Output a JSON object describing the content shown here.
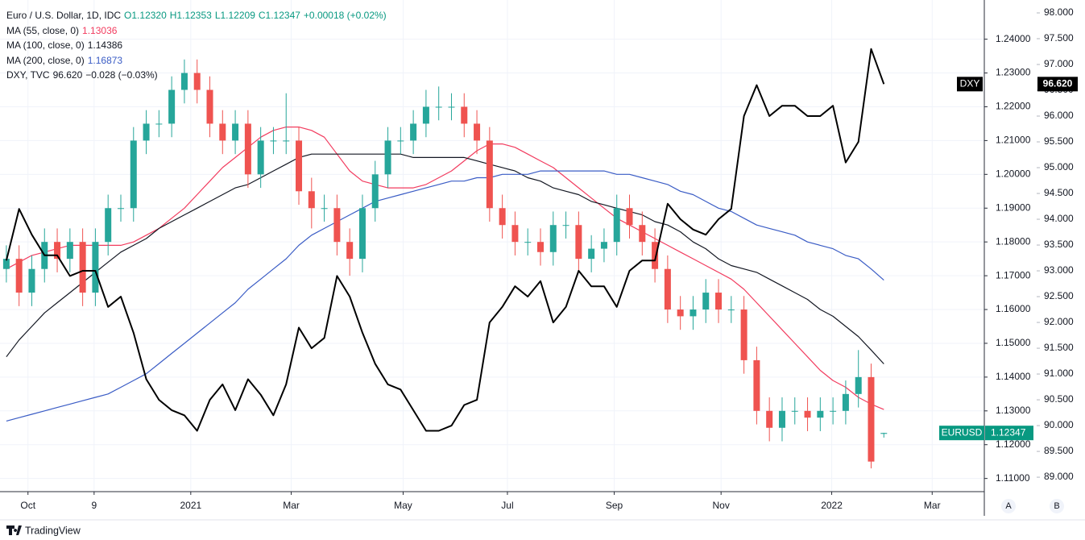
{
  "chart_data": {
    "type": "candlestick",
    "legend": {
      "title": "Euro / U.S. Dollar, 1D, IDC",
      "ohlc": [
        "O1.12320",
        "H1.12353",
        "L1.12209",
        "C1.12347",
        "+0.00018 (+0.02%)"
      ],
      "ohlc_color": "#089981"
    },
    "candles": {
      "name": "EURUSD",
      "last_label": "1.12347",
      "badge_color": "#089981",
      "up_color": "#26a69a",
      "down_color": "#ef5350",
      "open": [
        1.172,
        1.175,
        1.165,
        1.172,
        1.18,
        1.175,
        1.18,
        1.165,
        1.18,
        1.19,
        1.19,
        1.21,
        1.215,
        1.215,
        1.225,
        1.23,
        1.225,
        1.215,
        1.21,
        1.215,
        1.2,
        1.21,
        1.21,
        1.21,
        1.195,
        1.19,
        1.19,
        1.18,
        1.175,
        1.19,
        1.2,
        1.21,
        1.21,
        1.215,
        1.22,
        1.22,
        1.22,
        1.215,
        1.21,
        1.19,
        1.185,
        1.18,
        1.18,
        1.177,
        1.185,
        1.185,
        1.175,
        1.178,
        1.18,
        1.19,
        1.185,
        1.18,
        1.172,
        1.16,
        1.158,
        1.16,
        1.165,
        1.16,
        1.16,
        1.145,
        1.13,
        1.125,
        1.13,
        1.13,
        1.128,
        1.13,
        1.13,
        1.135,
        1.14,
        1.1232
      ],
      "high": [
        1.179,
        1.179,
        1.176,
        1.184,
        1.184,
        1.184,
        1.184,
        1.184,
        1.194,
        1.194,
        1.214,
        1.219,
        1.219,
        1.229,
        1.234,
        1.234,
        1.229,
        1.219,
        1.219,
        1.219,
        1.214,
        1.214,
        1.224,
        1.214,
        1.199,
        1.194,
        1.194,
        1.184,
        1.194,
        1.204,
        1.214,
        1.214,
        1.219,
        1.225,
        1.226,
        1.224,
        1.224,
        1.219,
        1.214,
        1.194,
        1.189,
        1.184,
        1.184,
        1.189,
        1.189,
        1.189,
        1.182,
        1.184,
        1.194,
        1.194,
        1.189,
        1.184,
        1.176,
        1.164,
        1.164,
        1.169,
        1.169,
        1.164,
        1.164,
        1.149,
        1.134,
        1.134,
        1.134,
        1.134,
        1.134,
        1.134,
        1.139,
        1.148,
        1.144,
        1.12353
      ],
      "low": [
        1.168,
        1.161,
        1.161,
        1.168,
        1.171,
        1.171,
        1.161,
        1.161,
        1.176,
        1.186,
        1.186,
        1.206,
        1.211,
        1.211,
        1.221,
        1.221,
        1.211,
        1.206,
        1.206,
        1.196,
        1.196,
        1.206,
        1.206,
        1.191,
        1.184,
        1.186,
        1.176,
        1.17,
        1.171,
        1.186,
        1.196,
        1.206,
        1.206,
        1.211,
        1.216,
        1.216,
        1.211,
        1.206,
        1.186,
        1.181,
        1.176,
        1.176,
        1.173,
        1.173,
        1.181,
        1.171,
        1.171,
        1.174,
        1.176,
        1.181,
        1.176,
        1.168,
        1.156,
        1.154,
        1.154,
        1.156,
        1.156,
        1.156,
        1.141,
        1.126,
        1.121,
        1.121,
        1.126,
        1.124,
        1.124,
        1.126,
        1.126,
        1.131,
        1.113,
        1.12209
      ],
      "close": [
        1.175,
        1.165,
        1.172,
        1.18,
        1.175,
        1.18,
        1.165,
        1.18,
        1.19,
        1.19,
        1.21,
        1.215,
        1.215,
        1.225,
        1.23,
        1.225,
        1.215,
        1.21,
        1.215,
        1.2,
        1.21,
        1.21,
        1.21,
        1.195,
        1.19,
        1.19,
        1.18,
        1.175,
        1.19,
        1.2,
        1.21,
        1.21,
        1.215,
        1.22,
        1.22,
        1.22,
        1.215,
        1.21,
        1.19,
        1.185,
        1.18,
        1.18,
        1.177,
        1.185,
        1.185,
        1.175,
        1.178,
        1.18,
        1.19,
        1.185,
        1.18,
        1.172,
        1.16,
        1.158,
        1.16,
        1.165,
        1.16,
        1.16,
        1.145,
        1.13,
        1.125,
        1.13,
        1.13,
        1.128,
        1.13,
        1.13,
        1.135,
        1.14,
        1.115,
        1.12347
      ]
    },
    "series": [
      {
        "name": "MA (55, close, 0)",
        "value_label": "1.13036",
        "color": "#f23c5f",
        "values": [
          1.172,
          1.174,
          1.176,
          1.177,
          1.178,
          1.179,
          1.179,
          1.179,
          1.179,
          1.179,
          1.18,
          1.182,
          1.184,
          1.187,
          1.19,
          1.194,
          1.198,
          1.202,
          1.205,
          1.208,
          1.211,
          1.213,
          1.214,
          1.214,
          1.213,
          1.211,
          1.206,
          1.201,
          1.198,
          1.197,
          1.196,
          1.196,
          1.196,
          1.197,
          1.199,
          1.201,
          1.204,
          1.207,
          1.209,
          1.209,
          1.208,
          1.206,
          1.204,
          1.202,
          1.199,
          1.196,
          1.193,
          1.19,
          1.187,
          1.185,
          1.183,
          1.181,
          1.179,
          1.177,
          1.175,
          1.173,
          1.171,
          1.169,
          1.166,
          1.162,
          1.158,
          1.154,
          1.15,
          1.146,
          1.142,
          1.139,
          1.137,
          1.134,
          1.132,
          1.1304
        ]
      },
      {
        "name": "MA (100, close, 0)",
        "value_label": "1.14386",
        "color": "#131722",
        "values": [
          1.146,
          1.151,
          1.155,
          1.159,
          1.162,
          1.165,
          1.168,
          1.171,
          1.174,
          1.177,
          1.179,
          1.181,
          1.184,
          1.186,
          1.188,
          1.19,
          1.192,
          1.194,
          1.196,
          1.197,
          1.199,
          1.201,
          1.203,
          1.205,
          1.206,
          1.206,
          1.206,
          1.206,
          1.206,
          1.206,
          1.206,
          1.206,
          1.205,
          1.205,
          1.205,
          1.205,
          1.205,
          1.204,
          1.203,
          1.202,
          1.201,
          1.199,
          1.198,
          1.196,
          1.195,
          1.194,
          1.192,
          1.191,
          1.19,
          1.189,
          1.188,
          1.186,
          1.185,
          1.183,
          1.18,
          1.178,
          1.175,
          1.173,
          1.172,
          1.171,
          1.169,
          1.167,
          1.165,
          1.163,
          1.16,
          1.158,
          1.155,
          1.152,
          1.148,
          1.1439
        ]
      },
      {
        "name": "MA (200, close, 0)",
        "value_label": "1.16873",
        "color": "#3a5cc5",
        "values": [
          1.127,
          1.128,
          1.129,
          1.13,
          1.131,
          1.132,
          1.133,
          1.134,
          1.135,
          1.137,
          1.139,
          1.141,
          1.144,
          1.147,
          1.15,
          1.153,
          1.156,
          1.159,
          1.162,
          1.166,
          1.169,
          1.172,
          1.175,
          1.179,
          1.182,
          1.184,
          1.186,
          1.188,
          1.19,
          1.192,
          1.193,
          1.194,
          1.195,
          1.196,
          1.197,
          1.198,
          1.198,
          1.199,
          1.199,
          1.2,
          1.2,
          1.2,
          1.201,
          1.201,
          1.201,
          1.201,
          1.201,
          1.201,
          1.2,
          1.2,
          1.199,
          1.198,
          1.197,
          1.195,
          1.194,
          1.192,
          1.19,
          1.189,
          1.187,
          1.185,
          1.184,
          1.183,
          1.182,
          1.18,
          1.179,
          1.178,
          1.176,
          1.175,
          1.172,
          1.1687
        ]
      },
      {
        "name": "DXY",
        "legend_name": "DXY, TVC",
        "value_label": "96.620",
        "change_label": "−0.028 (−0.03%)",
        "color": "#000000",
        "axis": "y2",
        "values": [
          93.2,
          94.2,
          93.7,
          93.3,
          93.3,
          92.9,
          93.0,
          93.0,
          92.3,
          92.5,
          91.8,
          90.9,
          90.5,
          90.3,
          90.2,
          89.9,
          90.5,
          90.8,
          90.3,
          90.9,
          90.6,
          90.2,
          90.8,
          91.9,
          91.5,
          91.7,
          92.9,
          92.5,
          91.8,
          91.2,
          90.8,
          90.7,
          90.3,
          89.9,
          89.9,
          90.0,
          90.4,
          90.5,
          92.0,
          92.3,
          92.7,
          92.5,
          92.8,
          92.0,
          92.3,
          93.0,
          92.7,
          92.7,
          92.3,
          93.0,
          93.2,
          93.2,
          94.3,
          94.0,
          93.8,
          93.7,
          94.0,
          94.2,
          96.0,
          96.6,
          96.0,
          96.2,
          96.2,
          96.0,
          96.0,
          96.2,
          95.1,
          95.5,
          97.3,
          96.62
        ]
      }
    ],
    "xlim": [
      -0.5,
      76.9
    ],
    "xticks": [
      {
        "value": 1.7,
        "label": "Oct"
      },
      {
        "value": 6.9,
        "label": "9"
      },
      {
        "value": 14.5,
        "label": "2021"
      },
      {
        "value": 22.4,
        "label": "Mar"
      },
      {
        "value": 31.2,
        "label": "May"
      },
      {
        "value": 39.4,
        "label": "Jul"
      },
      {
        "value": 47.8,
        "label": "Sep"
      },
      {
        "value": 56.2,
        "label": "Nov"
      },
      {
        "value": 64.9,
        "label": "2022"
      },
      {
        "value": 72.8,
        "label": "Mar"
      }
    ],
    "ylim": [
      1.1061,
      1.2516
    ],
    "yticks": [
      {
        "value": 1.24,
        "label": "1.24000"
      },
      {
        "value": 1.23,
        "label": "1.23000"
      },
      {
        "value": 1.22,
        "label": "1.22000"
      },
      {
        "value": 1.21,
        "label": "1.21000"
      },
      {
        "value": 1.2,
        "label": "1.20000"
      },
      {
        "value": 1.19,
        "label": "1.19000"
      },
      {
        "value": 1.18,
        "label": "1.18000"
      },
      {
        "value": 1.17,
        "label": "1.17000"
      },
      {
        "value": 1.16,
        "label": "1.16000"
      },
      {
        "value": 1.15,
        "label": "1.15000"
      },
      {
        "value": 1.14,
        "label": "1.14000"
      },
      {
        "value": 1.13,
        "label": "1.13000"
      },
      {
        "value": 1.12,
        "label": "1.12000"
      },
      {
        "value": 1.11,
        "label": "1.11000"
      }
    ],
    "y2lim": [
      88.72,
      98.25
    ],
    "y2ticks": [
      {
        "value": 98,
        "label": "98.000"
      },
      {
        "value": 97.5,
        "label": "97.500"
      },
      {
        "value": 97,
        "label": "97.000"
      },
      {
        "value": 96.5,
        "label": "96.500"
      },
      {
        "value": 96,
        "label": "96.000"
      },
      {
        "value": 95.5,
        "label": "95.500"
      },
      {
        "value": 95,
        "label": "95.000"
      },
      {
        "value": 94.5,
        "label": "94.500"
      },
      {
        "value": 94,
        "label": "94.000"
      },
      {
        "value": 93.5,
        "label": "93.500"
      },
      {
        "value": 93,
        "label": "93.000"
      },
      {
        "value": 92.5,
        "label": "92.500"
      },
      {
        "value": 92,
        "label": "92.000"
      },
      {
        "value": 91.5,
        "label": "91.500"
      },
      {
        "value": 91,
        "label": "91.000"
      },
      {
        "value": 90.5,
        "label": "90.500"
      },
      {
        "value": 90,
        "label": "90.000"
      },
      {
        "value": 89.5,
        "label": "89.500"
      },
      {
        "value": 89,
        "label": "89.000"
      }
    ],
    "grid": true,
    "scale_buttons": [
      "A",
      "B"
    ],
    "brand": "TradingView"
  }
}
